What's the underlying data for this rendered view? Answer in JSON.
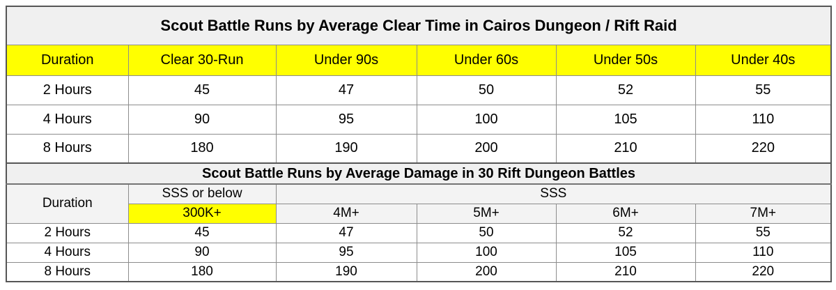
{
  "colors": {
    "highlight_yellow": "#ffff00",
    "title_bg": "#f0f0f0",
    "header2_bg": "#f3f3f3",
    "border_inner": "#8c8c8c",
    "border_outer": "#565656",
    "text": "#000000"
  },
  "table1": {
    "title": "Scout Battle Runs by Average Clear Time in Cairos Dungeon / Rift Raid",
    "columns": [
      "Duration",
      "Clear 30-Run",
      "Under 90s",
      "Under 60s",
      "Under 50s",
      "Under 40s"
    ],
    "rows": [
      {
        "duration": "2 Hours",
        "values": [
          "45",
          "47",
          "50",
          "52",
          "55"
        ]
      },
      {
        "duration": "4 Hours",
        "values": [
          "90",
          "95",
          "100",
          "105",
          "110"
        ]
      },
      {
        "duration": "8 Hours",
        "values": [
          "180",
          "190",
          "200",
          "210",
          "220"
        ]
      }
    ]
  },
  "table2": {
    "title": "Scout Battle Runs by Average Damage in 30 Rift Dungeon Battles",
    "duration_label": "Duration",
    "grade_group_below": "SSS or below",
    "grade_group_sss": "SSS",
    "thresholds": [
      "300K+",
      "4M+",
      "5M+",
      "6M+",
      "7M+"
    ],
    "rows": [
      {
        "duration": "2 Hours",
        "values": [
          "45",
          "47",
          "50",
          "52",
          "55"
        ]
      },
      {
        "duration": "4 Hours",
        "values": [
          "90",
          "95",
          "100",
          "105",
          "110"
        ]
      },
      {
        "duration": "8 Hours",
        "values": [
          "180",
          "190",
          "200",
          "210",
          "220"
        ]
      }
    ]
  }
}
